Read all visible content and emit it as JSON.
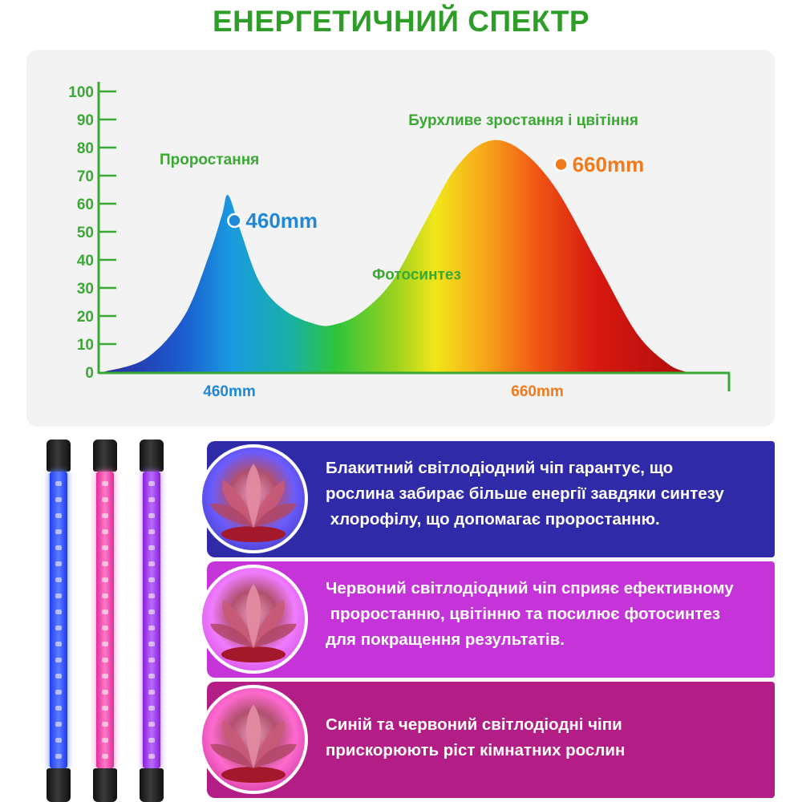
{
  "title": "ЕНЕРГЕТИЧНИЙ СПЕКТР",
  "colors": {
    "title": "#2e9e28",
    "axis": "#3aa933",
    "blue_label": "#1f88d8",
    "orange_label": "#f07a1c"
  },
  "chart_data": {
    "type": "area",
    "yticks": [
      "0",
      "10",
      "20",
      "30",
      "40",
      "50",
      "60",
      "70",
      "80",
      "90",
      "100"
    ],
    "ylim": [
      0,
      100
    ],
    "xlabels": [
      "460mm",
      "660mm"
    ],
    "curve": [
      {
        "x": 0.0,
        "y": 0
      },
      {
        "x": 0.07,
        "y": 5
      },
      {
        "x": 0.13,
        "y": 20
      },
      {
        "x": 0.17,
        "y": 42
      },
      {
        "x": 0.19,
        "y": 56
      },
      {
        "x": 0.2,
        "y": 63
      },
      {
        "x": 0.22,
        "y": 50
      },
      {
        "x": 0.25,
        "y": 32
      },
      {
        "x": 0.29,
        "y": 22
      },
      {
        "x": 0.34,
        "y": 17
      },
      {
        "x": 0.37,
        "y": 17
      },
      {
        "x": 0.41,
        "y": 21
      },
      {
        "x": 0.46,
        "y": 32
      },
      {
        "x": 0.51,
        "y": 52
      },
      {
        "x": 0.56,
        "y": 72
      },
      {
        "x": 0.61,
        "y": 82
      },
      {
        "x": 0.66,
        "y": 80
      },
      {
        "x": 0.72,
        "y": 66
      },
      {
        "x": 0.79,
        "y": 38
      },
      {
        "x": 0.85,
        "y": 14
      },
      {
        "x": 0.9,
        "y": 3
      },
      {
        "x": 0.93,
        "y": 0
      }
    ],
    "points": [
      {
        "label": "460mm",
        "x": 0.21,
        "y": 54,
        "color": "#1f88d8"
      },
      {
        "label": "660mm",
        "x": 0.73,
        "y": 74,
        "color": "#f07a1c"
      }
    ],
    "annotations": [
      {
        "text": "Проростання",
        "x": 0.17,
        "y": 74
      },
      {
        "text": "Бурхливе зростання і цвітіння",
        "x": 0.67,
        "y": 88
      },
      {
        "text": "Фотосинтез",
        "x": 0.5,
        "y": 33
      }
    ]
  },
  "cards": [
    {
      "lines": [
        "Блакитний світлодіодний чіп гарантує, що",
        "рослина забирає більше енергії завдяки синтезу",
        " хлорофілу, що допомагає проростанню."
      ],
      "bg": "#2f2aa8",
      "glow": "#6a5cff"
    },
    {
      "lines": [
        "Червоний світлодіодний чіп сприяє ефективному",
        " проростанню, цвітінню та посилює фотосинтез",
        "для покращення результатів."
      ],
      "bg": "#c534d8",
      "glow": "#f07cff"
    },
    {
      "lines": [
        "Синій та червоний світлодіодні чіпи",
        "прискорюють ріст кімнатних рослин"
      ],
      "bg": "#b21e86",
      "glow": "#ff6ad0"
    }
  ],
  "lamps": [
    {
      "color": "#1d3cf0",
      "glow": "#5d7bff"
    },
    {
      "color": "#e02d9a",
      "glow": "#ff7ac8"
    },
    {
      "color": "#8a1fd8",
      "glow": "#b86bff"
    }
  ]
}
